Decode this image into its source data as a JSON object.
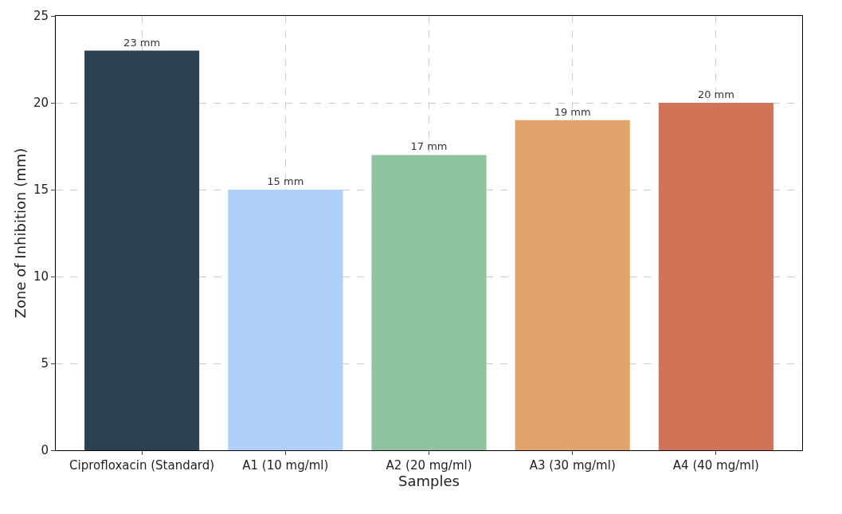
{
  "chart_data": {
    "type": "bar",
    "xlabel": "Samples",
    "ylabel": "Zone of Inhibition (mm)",
    "categories": [
      "Ciprofloxacin (Standard)",
      "A1 (10 mg/ml)",
      "A2 (20 mg/ml)",
      "A3 (30 mg/ml)",
      "A4 (40 mg/ml)"
    ],
    "values": [
      23,
      15,
      17,
      19,
      20
    ],
    "value_labels": [
      "23 mm",
      "15 mm",
      "17 mm",
      "19 mm",
      "20 mm"
    ],
    "colors": [
      "#2e4150",
      "#aecff7",
      "#8fc4a0",
      "#e2a46a",
      "#d07356"
    ],
    "ylim": [
      0,
      25
    ],
    "yticks": [
      0,
      5,
      10,
      15,
      20,
      25
    ],
    "grid": true
  }
}
